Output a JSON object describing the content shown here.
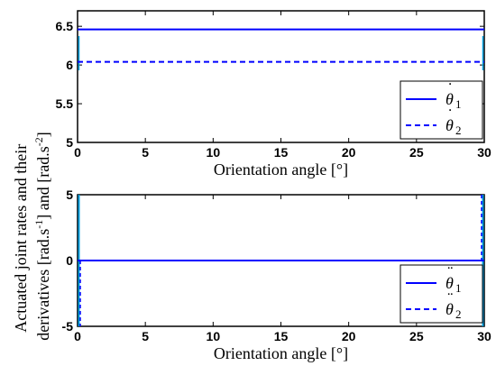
{
  "ylabel_line1": "Actuated joint rates and their",
  "ylabel_line2_a": "derivatives [rad.s",
  "ylabel_line2_sup1": "-1",
  "ylabel_line2_b": "] and [rad.s",
  "ylabel_line2_sup2": "-2",
  "ylabel_line2_c": "]",
  "colors": {
    "series": "#0000ff",
    "transient": "#00a0e0"
  },
  "chart_data": [
    {
      "type": "line",
      "xlabel": "Orientation angle [°]",
      "xlim": [
        0,
        30
      ],
      "ylim": [
        5,
        6.7
      ],
      "xticks": [
        "0",
        "5",
        "10",
        "15",
        "20",
        "25",
        "30"
      ],
      "yticks": [
        "5",
        "5.5",
        "6",
        "6.5"
      ],
      "grid": false,
      "legend_position": "bottom-right",
      "series": [
        {
          "name": "θ̇1",
          "style": "solid",
          "x": [
            0,
            30
          ],
          "y": [
            6.46,
            6.46
          ]
        },
        {
          "name": "θ̇2",
          "style": "dashed",
          "x": [
            0,
            30
          ],
          "y": [
            6.04,
            6.04
          ]
        }
      ],
      "legend": [
        {
          "symbol": "θ",
          "dot": "˙",
          "sub": "1",
          "style": "solid"
        },
        {
          "symbol": "θ",
          "dot": "˙",
          "sub": "2",
          "style": "dashed"
        }
      ]
    },
    {
      "type": "line",
      "xlabel": "Orientation angle [°]",
      "xlim": [
        0,
        30
      ],
      "ylim": [
        -5,
        5
      ],
      "xticks": [
        "0",
        "5",
        "10",
        "15",
        "20",
        "25",
        "30"
      ],
      "yticks": [
        "-5",
        "0",
        "5"
      ],
      "grid": false,
      "legend_position": "bottom-right",
      "series": [
        {
          "name": "θ̈1",
          "style": "solid",
          "x": [
            0,
            30
          ],
          "y": [
            0,
            0
          ]
        },
        {
          "name": "θ̈2",
          "style": "dashed",
          "x": [
            0,
            30
          ],
          "y": [
            0,
            0
          ]
        }
      ],
      "legend": [
        {
          "symbol": "θ",
          "dot": "¨",
          "sub": "1",
          "style": "solid"
        },
        {
          "symbol": "θ",
          "dot": "¨",
          "sub": "2",
          "style": "dashed"
        }
      ]
    }
  ]
}
